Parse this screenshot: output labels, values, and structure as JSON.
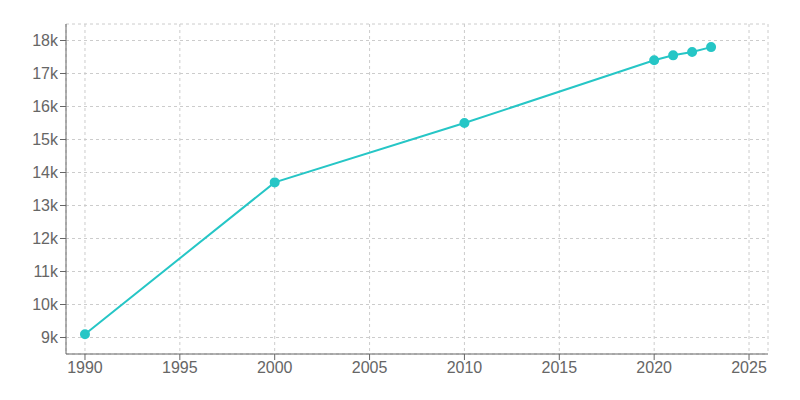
{
  "chart_data": {
    "type": "line",
    "x": [
      1990,
      2000,
      2010,
      2020,
      2021,
      2022,
      2023
    ],
    "values": [
      9100,
      13700,
      15500,
      17400,
      17550,
      17650,
      17800
    ],
    "color": "#26C6C6",
    "marker": "circle",
    "xlim": [
      1989,
      2026
    ],
    "xticks": [
      1990,
      1995,
      2000,
      2005,
      2010,
      2015,
      2020,
      2025
    ],
    "ylim": [
      8500,
      18500
    ],
    "yticks": [
      {
        "value": 9000,
        "label": "9k"
      },
      {
        "value": 10000,
        "label": "10k"
      },
      {
        "value": 11000,
        "label": "11k"
      },
      {
        "value": 12000,
        "label": "12k"
      },
      {
        "value": 13000,
        "label": "13k"
      },
      {
        "value": 14000,
        "label": "14k"
      },
      {
        "value": 15000,
        "label": "15k"
      },
      {
        "value": 16000,
        "label": "16k"
      },
      {
        "value": 17000,
        "label": "17k"
      },
      {
        "value": 18000,
        "label": "18k"
      }
    ],
    "grid": true
  }
}
